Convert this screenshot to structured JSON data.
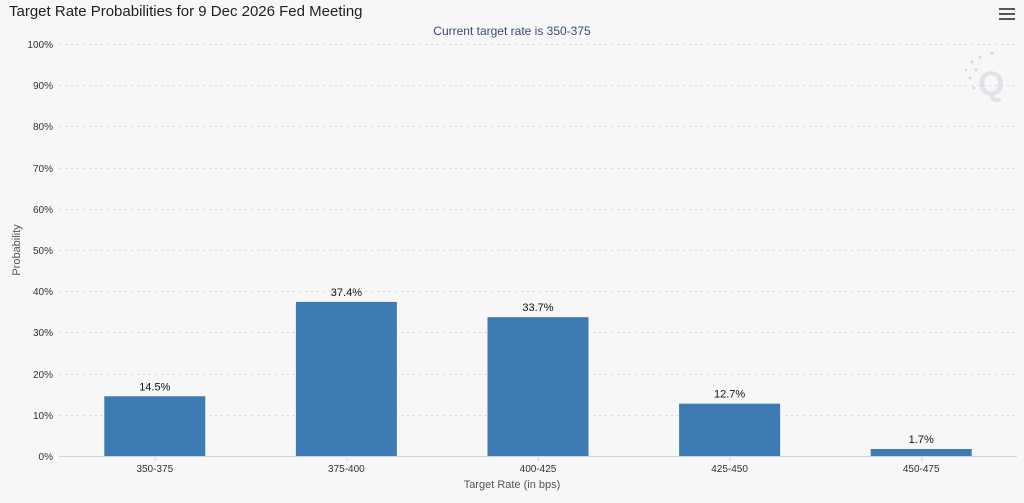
{
  "header": {
    "title": "Target Rate Probabilities for 9 Dec 2026 Fed Meeting"
  },
  "chart_data": {
    "type": "bar",
    "title": "Target Rate Probabilities for 9 Dec 2026 Fed Meeting",
    "subtitle": "Current target rate is 350-375",
    "xlabel": "Target Rate (in bps)",
    "ylabel": "Probability",
    "categories": [
      "350-375",
      "375-400",
      "400-425",
      "425-450",
      "450-475"
    ],
    "values": [
      14.5,
      37.4,
      33.7,
      12.7,
      1.7
    ],
    "data_labels": [
      "14.5%",
      "37.4%",
      "33.7%",
      "12.7%",
      "1.7%"
    ],
    "ylim": [
      0,
      100
    ],
    "yticks": [
      "0%",
      "10%",
      "20%",
      "30%",
      "40%",
      "50%",
      "60%",
      "70%",
      "80%",
      "90%",
      "100%"
    ],
    "grid": true,
    "bar_color": "#3f7bb3"
  }
}
